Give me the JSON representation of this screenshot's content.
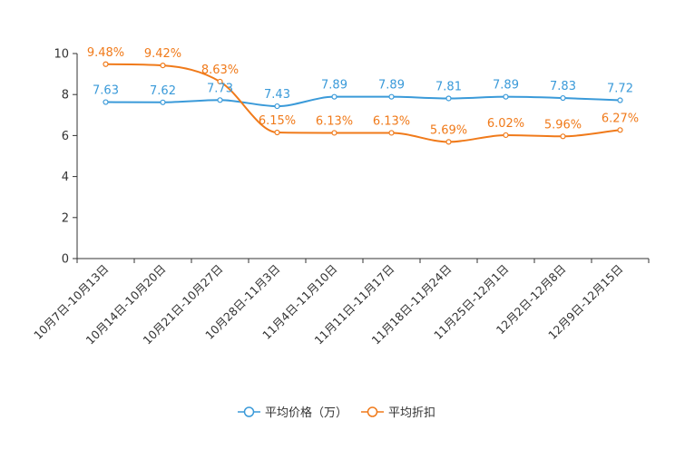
{
  "chart_data": {
    "type": "line",
    "title": "",
    "xlabel": "",
    "ylabel": "",
    "ylim": [
      0,
      10
    ],
    "yticks": [
      0,
      2,
      4,
      6,
      8,
      10
    ],
    "grid": false,
    "legend_position": "bottom-center",
    "categories": [
      "10月7日-10月13日",
      "10月14日-10月20日",
      "10月21日-10月27日",
      "10月28日-11月3日",
      "11月4日-11月10日",
      "11月11日-11月17日",
      "11月18日-11月24日",
      "11月25日-12月1日",
      "12月2日-12月8日",
      "12月9日-12月15日"
    ],
    "series": [
      {
        "name": "平均价格（万）",
        "color": "#3a9ad9",
        "values": [
          7.63,
          7.62,
          7.73,
          7.43,
          7.89,
          7.89,
          7.81,
          7.89,
          7.83,
          7.72
        ],
        "labels": [
          "7.63",
          "7.62",
          "7.73",
          "7.43",
          "7.89",
          "7.89",
          "7.81",
          "7.89",
          "7.83",
          "7.72"
        ]
      },
      {
        "name": "平均折扣",
        "color": "#f07a1a",
        "values": [
          9.48,
          9.42,
          8.63,
          6.15,
          6.13,
          6.13,
          5.69,
          6.02,
          5.96,
          6.27
        ],
        "labels": [
          "9.48%",
          "9.42%",
          "8.63%",
          "6.15%",
          "6.13%",
          "6.13%",
          "5.69%",
          "6.02%",
          "5.96%",
          "6.27%"
        ]
      }
    ]
  }
}
